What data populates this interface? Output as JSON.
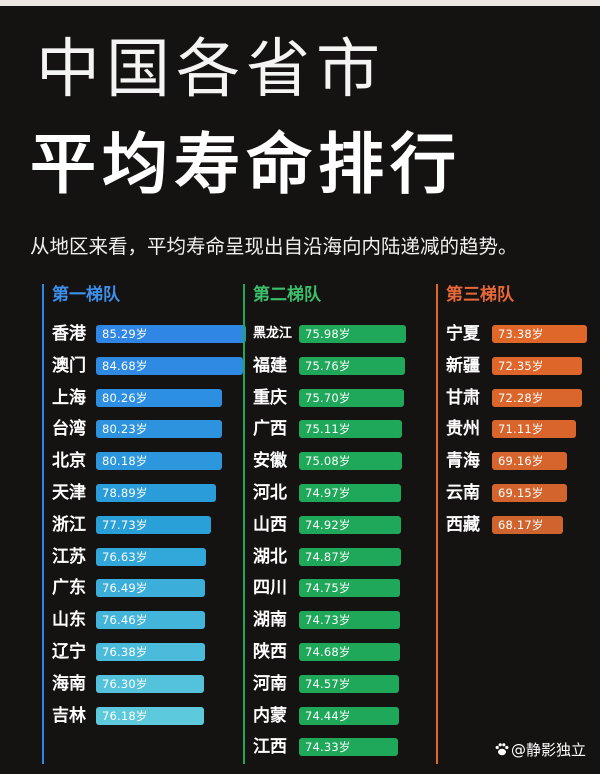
{
  "title_line1": "中国各省市",
  "title_line2": "平均寿命排行",
  "subtitle": "从地区来看，平均寿命呈现出自沿海向内陆递减的趋势。",
  "watermark": "@静影独立",
  "colors": {
    "background": "#151212",
    "tier1": "#2f86e5",
    "tier2": "#1fa85a",
    "tier3": "#e0672a"
  },
  "chart_data": {
    "type": "bar",
    "title": "中国各省市平均寿命排行",
    "unit": "岁",
    "tiers": [
      {
        "name": "第一梯队",
        "items": [
          {
            "region": "香港",
            "value": 85.29,
            "label": "85.29岁"
          },
          {
            "region": "澳门",
            "value": 84.68,
            "label": "84.68岁"
          },
          {
            "region": "上海",
            "value": 80.26,
            "label": "80.26岁"
          },
          {
            "region": "台湾",
            "value": 80.23,
            "label": "80.23岁"
          },
          {
            "region": "北京",
            "value": 80.18,
            "label": "80.18岁"
          },
          {
            "region": "天津",
            "value": 78.89,
            "label": "78.89岁"
          },
          {
            "region": "浙江",
            "value": 77.73,
            "label": "77.73岁"
          },
          {
            "region": "江苏",
            "value": 76.63,
            "label": "76.63岁"
          },
          {
            "region": "广东",
            "value": 76.49,
            "label": "76.49岁"
          },
          {
            "region": "山东",
            "value": 76.46,
            "label": "76.46岁"
          },
          {
            "region": "辽宁",
            "value": 76.38,
            "label": "76.38岁"
          },
          {
            "region": "海南",
            "value": 76.3,
            "label": "76.30岁"
          },
          {
            "region": "吉林",
            "value": 76.18,
            "label": "76.18岁"
          }
        ]
      },
      {
        "name": "第二梯队",
        "items": [
          {
            "region": "黑龙江",
            "value": 75.98,
            "label": "75.98岁"
          },
          {
            "region": "福建",
            "value": 75.76,
            "label": "75.76岁"
          },
          {
            "region": "重庆",
            "value": 75.7,
            "label": "75.70岁"
          },
          {
            "region": "广西",
            "value": 75.11,
            "label": "75.11岁"
          },
          {
            "region": "安徽",
            "value": 75.08,
            "label": "75.08岁"
          },
          {
            "region": "河北",
            "value": 74.97,
            "label": "74.97岁"
          },
          {
            "region": "山西",
            "value": 74.92,
            "label": "74.92岁"
          },
          {
            "region": "湖北",
            "value": 74.87,
            "label": "74.87岁"
          },
          {
            "region": "四川",
            "value": 74.75,
            "label": "74.75岁"
          },
          {
            "region": "湖南",
            "value": 74.73,
            "label": "74.73岁"
          },
          {
            "region": "陕西",
            "value": 74.68,
            "label": "74.68岁"
          },
          {
            "region": "河南",
            "value": 74.57,
            "label": "74.57岁"
          },
          {
            "region": "内蒙",
            "value": 74.44,
            "label": "74.44岁"
          },
          {
            "region": "江西",
            "value": 74.33,
            "label": "74.33岁"
          }
        ]
      },
      {
        "name": "第三梯队",
        "items": [
          {
            "region": "宁夏",
            "value": 73.38,
            "label": "73.38岁"
          },
          {
            "region": "新疆",
            "value": 72.35,
            "label": "72.35岁"
          },
          {
            "region": "甘肃",
            "value": 72.28,
            "label": "72.28岁"
          },
          {
            "region": "贵州",
            "value": 71.11,
            "label": "71.11岁"
          },
          {
            "region": "青海",
            "value": 69.16,
            "label": "69.16岁"
          },
          {
            "region": "云南",
            "value": 69.15,
            "label": "69.15岁"
          },
          {
            "region": "西藏",
            "value": 68.17,
            "label": "68.17岁"
          }
        ]
      }
    ]
  }
}
